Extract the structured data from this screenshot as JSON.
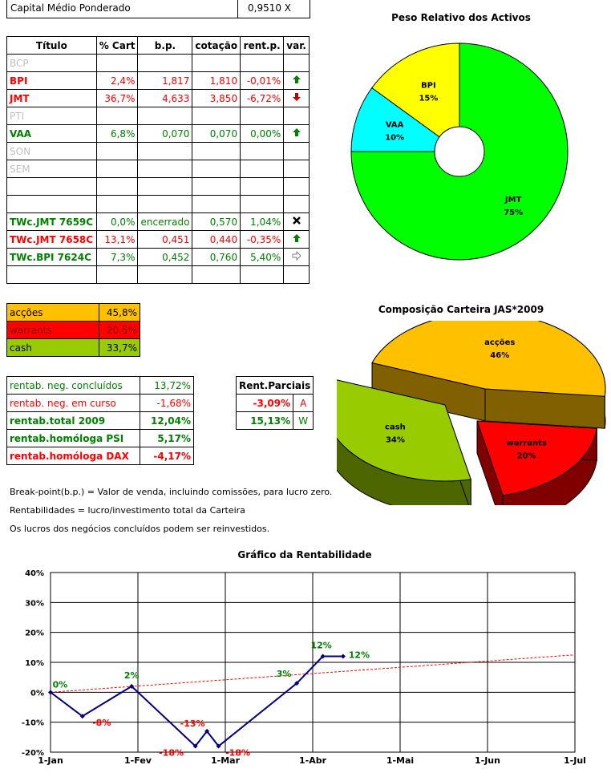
{
  "capital": {
    "label": "Capital Médio Ponderado",
    "value": "0,9510 X"
  },
  "assets_table": {
    "headers": [
      "Título",
      "% Cart",
      "b.p.",
      "cotação",
      "rent.p.",
      "var."
    ],
    "rows": [
      {
        "titulo": "BCP",
        "cart": "",
        "bp": "",
        "cot": "",
        "rent": "",
        "var": "",
        "cls": "grey"
      },
      {
        "titulo": "BPI",
        "cart": "2,4%",
        "bp": "1,817",
        "cot": "1,810",
        "rent": "-0,01%",
        "var": "up",
        "cls": "red"
      },
      {
        "titulo": "JMT",
        "cart": "36,7%",
        "bp": "4,633",
        "cot": "3,850",
        "rent": "-6,72%",
        "var": "down",
        "cls": "red"
      },
      {
        "titulo": "PTI",
        "cart": "",
        "bp": "",
        "cot": "",
        "rent": "",
        "var": "",
        "cls": "grey"
      },
      {
        "titulo": "VAA",
        "cart": "6,8%",
        "bp": "0,070",
        "cot": "0,070",
        "rent": "0,00%",
        "var": "up",
        "cls": "green"
      },
      {
        "titulo": "SON",
        "cart": "",
        "bp": "",
        "cot": "",
        "rent": "",
        "var": "",
        "cls": "grey"
      },
      {
        "titulo": "SEM",
        "cart": "",
        "bp": "",
        "cot": "",
        "rent": "",
        "var": "",
        "cls": "grey"
      },
      {
        "titulo": "",
        "cart": "",
        "bp": "",
        "cot": "",
        "rent": "",
        "var": "",
        "cls": ""
      },
      {
        "titulo": "",
        "cart": "",
        "bp": "",
        "cot": "",
        "rent": "",
        "var": "",
        "cls": ""
      },
      {
        "titulo": "TWc.JMT 7659C",
        "cart": "0,0%",
        "bp": "encerrado",
        "cot": "0,570",
        "rent": "1,04%",
        "var": "x",
        "cls": "green"
      },
      {
        "titulo": "TWc.JMT 7658C",
        "cart": "13,1%",
        "bp": "0,451",
        "cot": "0,440",
        "rent": "-0,35%",
        "var": "up",
        "cls": "red"
      },
      {
        "titulo": "TWc.BPI 7624C",
        "cart": "7,3%",
        "bp": "0,452",
        "cot": "0,760",
        "rent": "5,40%",
        "var": "right",
        "cls": "green"
      },
      {
        "titulo": "",
        "cart": "",
        "bp": "",
        "cot": "",
        "rent": "",
        "var": "",
        "cls": ""
      }
    ]
  },
  "composition": [
    {
      "label": "acções",
      "value": "45,8%",
      "color": "#ffc000",
      "text": "#000000"
    },
    {
      "label": "warrants",
      "value": "20,5%",
      "color": "#ff0000",
      "text": "#800000"
    },
    {
      "label": "cash",
      "value": "33,7%",
      "color": "#99cc00",
      "text": "#000000"
    }
  ],
  "rentab": [
    {
      "label": "rentab. neg. concluídos",
      "value": "13,72%",
      "color": "#008000",
      "bold": false
    },
    {
      "label": "rentab. neg. em curso",
      "value": "-1,68%",
      "color": "#ff0000",
      "bold": false
    },
    {
      "label": "rentab.total 2009",
      "value": "12,04%",
      "color": "#008000",
      "bold": true
    },
    {
      "label": "rentab.homóloga PSI",
      "value": "5,17%",
      "color": "#008000",
      "bold": true
    },
    {
      "label": "rentab.homóloga DAX",
      "value": "-4,17%",
      "color": "#ff0000",
      "bold": true
    }
  ],
  "partial": {
    "header": "Rent.Parciais",
    "rows": [
      {
        "value": "-3,09%",
        "tag": "A",
        "color": "#ff0000"
      },
      {
        "value": "15,13%",
        "tag": "W",
        "color": "#008000"
      }
    ]
  },
  "notes": [
    "Break-point(b.p.) = Valor de venda, incluindo comissões, para lucro zero.",
    "Rentabilidades = lucro/investimento total da Carteira",
    "Os lucros dos negócios concluídos podem ser reinvestidos."
  ],
  "charts": {
    "pie1_title": "Peso Relativo dos Activos",
    "pie2_title": "Composição Carteira JAS*2009",
    "line_title": "Gráfico da Rentabilidade"
  },
  "chart_data": [
    {
      "type": "pie",
      "title": "Peso Relativo dos Activos",
      "variant": "doughnut",
      "slices": [
        {
          "label": "BPI",
          "value": 15,
          "display": "15%",
          "color": "#ffff00"
        },
        {
          "label": "JMT",
          "value": 75,
          "display": "75%",
          "color": "#00ff00"
        },
        {
          "label": "VAA",
          "value": 10,
          "display": "10%",
          "color": "#00ffff"
        }
      ]
    },
    {
      "type": "pie",
      "title": "Composição Carteira JAS*2009",
      "variant": "3d-exploded",
      "slices": [
        {
          "label": "acções",
          "value": 46,
          "display": "46%",
          "color": "#ffc000",
          "side": "#806000"
        },
        {
          "label": "warrants",
          "value": 20,
          "display": "20%",
          "color": "#ff0000",
          "side": "#800000"
        },
        {
          "label": "cash",
          "value": 34,
          "display": "34%",
          "color": "#99cc00",
          "side": "#4d6600"
        }
      ]
    },
    {
      "type": "line",
      "title": "Gráfico da Rentabilidade",
      "x_ticks": [
        "1-Jan",
        "1-Fev",
        "1-Mar",
        "1-Abr",
        "1-Mai",
        "1-Jun",
        "1-Jul"
      ],
      "y_ticks": [
        "-20%",
        "-10%",
        "0%",
        "10%",
        "20%",
        "30%",
        "40%"
      ],
      "ylim": [
        -20,
        40
      ],
      "xlim_days": [
        0,
        181
      ],
      "grid": true,
      "series": [
        {
          "color": "#000080",
          "points": [
            {
              "x": "1-Jan",
              "day": 0,
              "y": 0,
              "label": "0%",
              "label_color": "#008000"
            },
            {
              "x": "12-Jan",
              "day": 11,
              "y": -8,
              "label": "-8%",
              "label_color": "#ff0000"
            },
            {
              "x": "29-Jan",
              "day": 28,
              "y": 2,
              "label": "2%",
              "label_color": "#008000"
            },
            {
              "x": "20-Fev",
              "day": 50,
              "y": -18,
              "label": "-18%",
              "label_color": "#ff0000"
            },
            {
              "x": "24-Fev",
              "day": 54,
              "y": -13,
              "label": "-13%",
              "label_color": "#ff0000"
            },
            {
              "x": "28-Fev",
              "day": 58,
              "y": -18,
              "label": "-18%",
              "label_color": "#ff0000"
            },
            {
              "x": "27-Mar",
              "day": 85,
              "y": 3,
              "label": "3%",
              "label_color": "#008000"
            },
            {
              "x": "5-Abr",
              "day": 94,
              "y": 12,
              "label": "12%",
              "label_color": "#008000"
            },
            {
              "x": "12-Abr",
              "day": 101,
              "y": 12,
              "label": "12%",
              "label_color": "#008000"
            }
          ]
        }
      ],
      "trend": {
        "color": "#ff0000",
        "style": "dashed",
        "from": {
          "day": 0,
          "y": 0
        },
        "to": {
          "day": 181,
          "y": 12.5
        }
      }
    }
  ]
}
